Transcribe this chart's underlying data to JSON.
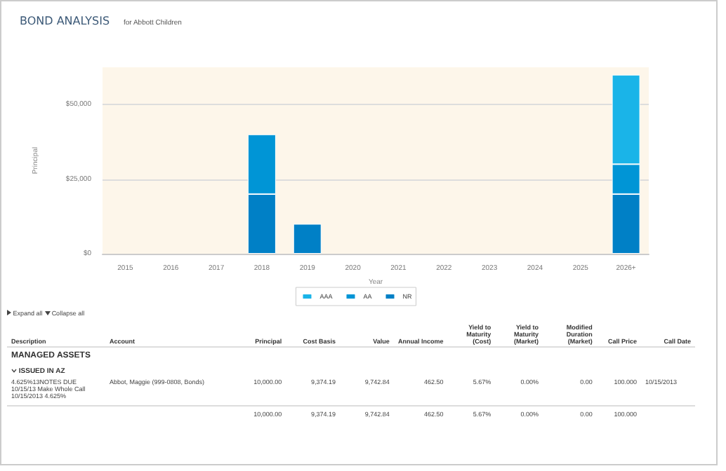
{
  "chart_data": [
    {
      "type": "bar",
      "title": "BOND ANALYSIS",
      "subtitle": "for Abbott Children",
      "xlabel": "Year",
      "ylabel": "Principal",
      "categories": [
        "2015",
        "2016",
        "2017",
        "2018",
        "2019",
        "2020",
        "2021",
        "2022",
        "2023",
        "2024",
        "2025",
        "2026+"
      ],
      "stacked": true,
      "series": [
        {
          "name": "NR",
          "color": "#0080c6",
          "values": [
            null,
            null,
            null,
            20000,
            10000,
            null,
            null,
            null,
            null,
            null,
            null,
            20000
          ]
        },
        {
          "name": "AA",
          "color": "#0095d6",
          "values": [
            null,
            null,
            null,
            20000,
            null,
            null,
            null,
            null,
            null,
            null,
            null,
            10000
          ]
        },
        {
          "name": "AAA",
          "color": "#1ab4e8",
          "values": [
            null,
            null,
            null,
            null,
            null,
            null,
            null,
            null,
            null,
            null,
            null,
            30000
          ]
        }
      ],
      "ylim": [
        0,
        62500
      ],
      "yticks": [
        {
          "value": 0,
          "label": "$0"
        },
        {
          "value": 25000,
          "label": "$25,000"
        },
        {
          "value": 50000,
          "label": "$50,000"
        }
      ],
      "grid": "y",
      "legend": "bottom"
    },
    {
      "type": "other",
      "annotations": [
        "Expand all",
        "Collapse all",
        "Description",
        "Account",
        "Principal",
        "Cost Basis",
        "Value",
        "Annual Income",
        "Yield to Maturity (Cost)",
        "Yield to Maturity (Market)",
        "Modified Duration (Market)",
        "Call Price",
        "Call Date",
        "MANAGED ASSETS",
        "ISSUED IN AZ",
        "4.625%13NOTES DUE 10/15/13 Make Whole Call 10/15/2013 4.625%",
        "Abbot, Maggie (999-0808, Bonds)",
        "10,000.00",
        "9,374.19",
        "9,742.84",
        "462.50",
        "5.67%",
        "0.00%",
        "0.00",
        "100.000",
        "10/15/2013",
        "10,000.00",
        "9,374.19",
        "9,742.84",
        "462.50",
        "5.67%",
        "0.00%",
        "0.00",
        "100.000"
      ]
    }
  ]
}
